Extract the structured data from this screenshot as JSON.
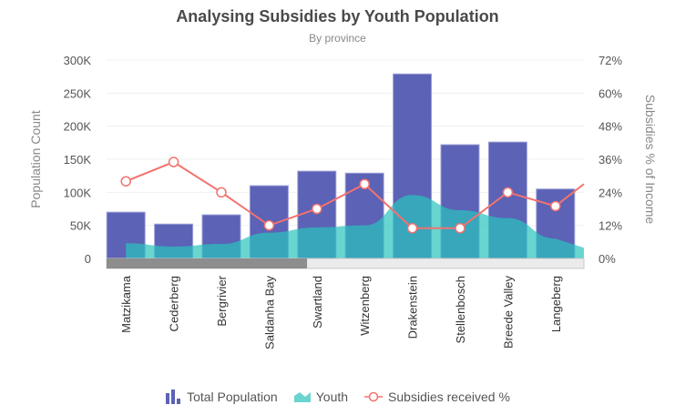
{
  "chart_data": {
    "type": "bar",
    "title": "Analysing Subsidies by Youth Population",
    "subtitle": "By province",
    "ylabel": "Population Count",
    "y2label": "Subsidies % of Income",
    "ylim": [
      0,
      300000
    ],
    "y2lim": [
      0,
      72
    ],
    "yticks": [
      "0",
      "50K",
      "100K",
      "150K",
      "200K",
      "250K",
      "300K"
    ],
    "y2ticks": [
      "0%",
      "12%",
      "24%",
      "36%",
      "48%",
      "60%",
      "72%"
    ],
    "categories": [
      "Matzikama",
      "Cederberg",
      "Bergrivier",
      "Saldanha Bay",
      "Swartland",
      "Witzenberg",
      "Drakenstein",
      "Stellenbosch",
      "Breede Valley",
      "Langeberg"
    ],
    "series": [
      {
        "name": "Total Population",
        "type": "bar",
        "axis": "left",
        "color": "#5c62b5",
        "values": [
          70000,
          52000,
          66000,
          110000,
          132000,
          129000,
          279000,
          172000,
          176000,
          105000
        ]
      },
      {
        "name": "Youth",
        "type": "area",
        "axis": "left",
        "color": "#29c3be",
        "values": [
          23000,
          18000,
          22000,
          39000,
          47000,
          50000,
          96000,
          73000,
          61000,
          30000
        ]
      },
      {
        "name": "Subsidies received %",
        "type": "line",
        "axis": "right",
        "color": "#f2726f",
        "values": [
          28,
          35,
          24,
          12,
          18,
          27,
          11,
          11,
          24,
          19
        ]
      }
    ],
    "grid": true,
    "legend": "bottom",
    "scrollbar": {
      "visible_fraction": 0.42
    }
  }
}
